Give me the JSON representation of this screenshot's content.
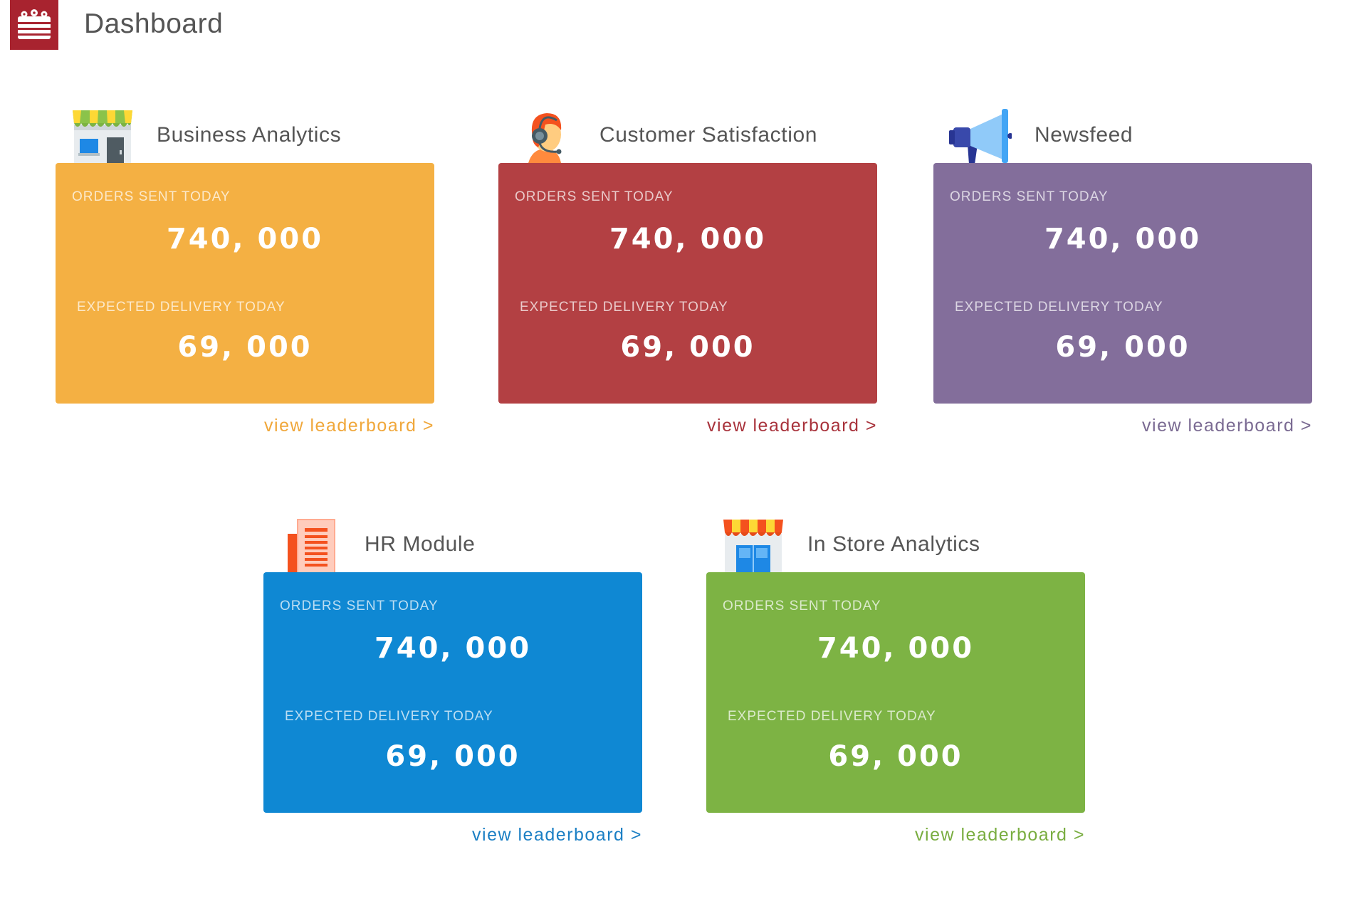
{
  "header": {
    "title": "Dashboard",
    "logo_icon": "cake-icon",
    "logo_color": "#a8232f"
  },
  "modules": [
    {
      "title": "Business Analytics",
      "icon": "storefront-icon",
      "color": "#f4b043",
      "link_color": "#f0a73a",
      "orders_label": "ORDERS SENT TODAY",
      "orders_value": "740, 000",
      "delivery_label": "EXPECTED DELIVERY TODAY",
      "delivery_value": "69, 000",
      "link": "view leaderboard >"
    },
    {
      "title": "Customer Satisfaction",
      "icon": "headset-agent-icon",
      "color": "#b34043",
      "link_color": "#a8323b",
      "orders_label": "ORDERS SENT TODAY",
      "orders_value": "740, 000",
      "delivery_label": "EXPECTED DELIVERY TODAY",
      "delivery_value": "69, 000",
      "link": "view leaderboard >"
    },
    {
      "title": "Newsfeed",
      "icon": "megaphone-icon",
      "color": "#836e9b",
      "link_color": "#7a6a92",
      "orders_label": "ORDERS SENT TODAY",
      "orders_value": "740, 000",
      "delivery_label": "EXPECTED DELIVERY TODAY",
      "delivery_value": "69, 000",
      "link": "view leaderboard >"
    },
    {
      "title": "HR Module",
      "icon": "document-icon",
      "color": "#0f88d3",
      "link_color": "#1b7fc4",
      "orders_label": "ORDERS SENT TODAY",
      "orders_value": "740, 000",
      "delivery_label": "EXPECTED DELIVERY TODAY",
      "delivery_value": "69, 000",
      "link": "view leaderboard >"
    },
    {
      "title": "In Store Analytics",
      "icon": "shop-awning-icon",
      "color": "#7db344",
      "link_color": "#79ad40",
      "orders_label": "ORDERS SENT TODAY",
      "orders_value": "740, 000",
      "delivery_label": "EXPECTED DELIVERY TODAY",
      "delivery_value": "69, 000",
      "link": "view leaderboard >"
    }
  ]
}
